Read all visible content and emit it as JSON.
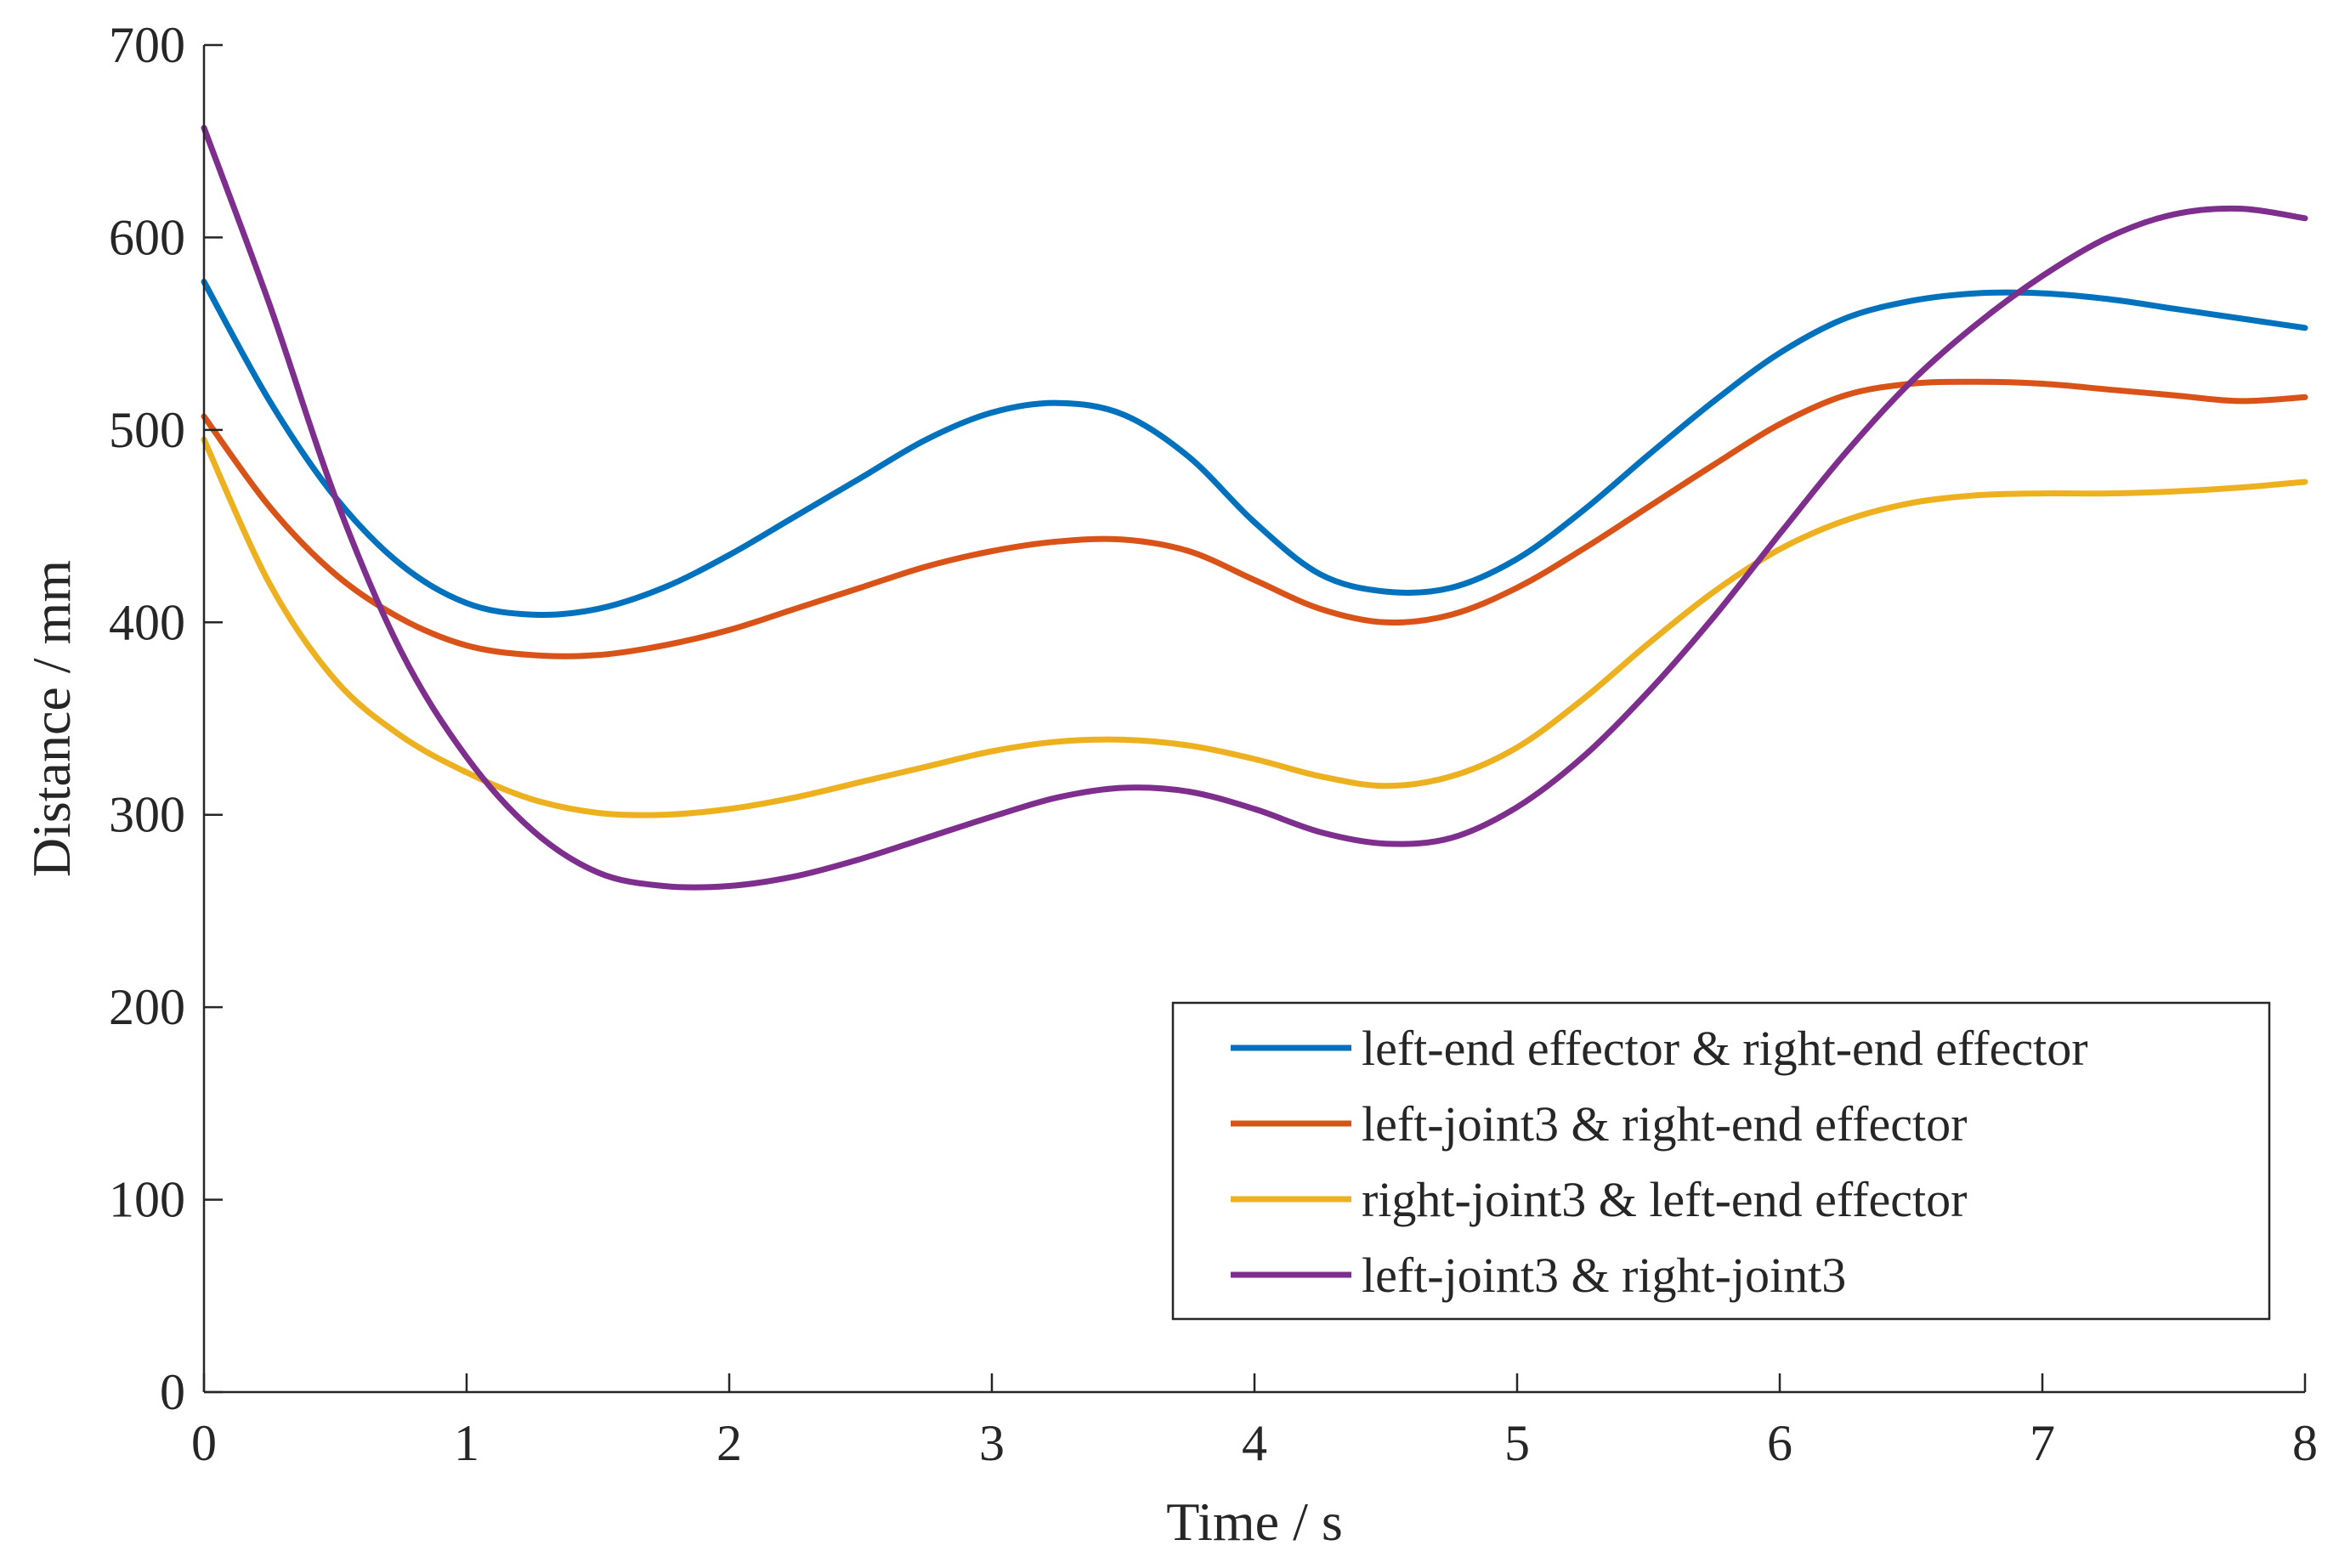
{
  "chart_data": {
    "type": "line",
    "title": "",
    "xlabel": "Time / s",
    "ylabel": "Distance / mm",
    "xlim": [
      0,
      8
    ],
    "ylim": [
      0,
      700
    ],
    "xticks": [
      0,
      1,
      2,
      3,
      4,
      5,
      6,
      7,
      8
    ],
    "yticks": [
      0,
      100,
      200,
      300,
      400,
      500,
      600,
      700
    ],
    "xtick_labels": [
      "0",
      "1",
      "2",
      "3",
      "4",
      "5",
      "6",
      "7",
      "8"
    ],
    "ytick_labels": [
      "0",
      "100",
      "200",
      "300",
      "400",
      "500",
      "600",
      "700"
    ],
    "grid": false,
    "legend_position": "bottom-right",
    "series": [
      {
        "name": "left-end effector & right-end effector",
        "color": "#0072BD",
        "x": [
          0,
          0.25,
          0.5,
          0.75,
          1,
          1.25,
          1.5,
          1.75,
          2,
          2.25,
          2.5,
          2.75,
          3,
          3.25,
          3.5,
          3.75,
          4,
          4.25,
          4.5,
          4.75,
          5,
          5.25,
          5.5,
          5.75,
          6,
          6.25,
          6.5,
          6.75,
          7,
          7.25,
          7.5,
          7.75,
          8
        ],
        "y": [
          577,
          515,
          465,
          430,
          410,
          404,
          407,
          418,
          435,
          455,
          475,
          495,
          509,
          514,
          508,
          486,
          452,
          425,
          416,
          418,
          433,
          458,
          487,
          515,
          540,
          558,
          567,
          571,
          571,
          568,
          563,
          558,
          553
        ]
      },
      {
        "name": "left-joint3 & right-end effector",
        "color": "#D95319",
        "x": [
          0,
          0.25,
          0.5,
          0.75,
          1,
          1.25,
          1.5,
          1.75,
          2,
          2.25,
          2.5,
          2.75,
          3,
          3.25,
          3.5,
          3.75,
          4,
          4.25,
          4.5,
          4.75,
          5,
          5.25,
          5.5,
          5.75,
          6,
          6.25,
          6.5,
          6.75,
          7,
          7.25,
          7.5,
          7.75,
          8
        ],
        "y": [
          507,
          460,
          425,
          402,
          388,
          383,
          383,
          388,
          396,
          407,
          418,
          429,
          437,
          442,
          443,
          437,
          422,
          407,
          400,
          404,
          418,
          438,
          460,
          482,
          503,
          518,
          524,
          525,
          524,
          521,
          518,
          515,
          517
        ]
      },
      {
        "name": "right-joint3 & left-end effector",
        "color": "#EDB120",
        "x": [
          0,
          0.25,
          0.5,
          0.75,
          1,
          1.25,
          1.5,
          1.75,
          2,
          2.25,
          2.5,
          2.75,
          3,
          3.25,
          3.5,
          3.75,
          4,
          4.25,
          4.5,
          4.75,
          5,
          5.25,
          5.5,
          5.75,
          6,
          6.25,
          6.5,
          6.75,
          7,
          7.25,
          7.5,
          7.75,
          8
        ],
        "y": [
          495,
          420,
          370,
          341,
          322,
          308,
          301,
          300,
          303,
          309,
          317,
          325,
          333,
          338,
          339,
          336,
          329,
          320,
          315,
          320,
          335,
          360,
          389,
          416,
          438,
          453,
          462,
          466,
          467,
          467,
          468,
          470,
          473
        ]
      },
      {
        "name": "left-joint3 & right-joint3",
        "color": "#7E2F8E",
        "x": [
          0,
          0.25,
          0.5,
          0.75,
          1,
          1.25,
          1.5,
          1.75,
          2,
          2.25,
          2.5,
          2.75,
          3,
          3.25,
          3.5,
          3.75,
          4,
          4.25,
          4.5,
          4.75,
          5,
          5.25,
          5.5,
          5.75,
          6,
          6.25,
          6.5,
          6.75,
          7,
          7.25,
          7.5,
          7.75,
          8
        ],
        "y": [
          657,
          565,
          465,
          385,
          330,
          292,
          270,
          263,
          263,
          268,
          277,
          288,
          299,
          309,
          314,
          312,
          303,
          291,
          285,
          288,
          304,
          330,
          364,
          403,
          446,
          488,
          525,
          555,
          580,
          600,
          612,
          615,
          610
        ]
      }
    ]
  }
}
